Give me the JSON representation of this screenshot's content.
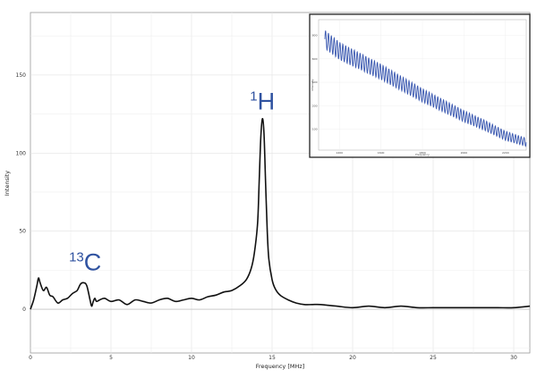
{
  "chart_data": [
    {
      "type": "line",
      "title": "",
      "xlabel": "Frequency [MHz]",
      "ylabel": "Intensity",
      "xlim": [
        0,
        31
      ],
      "ylim": [
        -28,
        190
      ],
      "x_ticks": [
        "0",
        "5",
        "10",
        "15",
        "20",
        "25",
        "30"
      ],
      "x_tick_values": [
        0,
        5,
        10,
        15,
        20,
        25,
        30
      ],
      "y_ticks": [
        "0",
        "50",
        "100",
        "150"
      ],
      "y_tick_values": [
        0,
        50,
        100,
        150
      ],
      "grid": true,
      "line_color": "#111111",
      "annotations": [
        {
          "sup": "13",
          "base": "C",
          "x": 3.4,
          "y": 25
        },
        {
          "sup": "1",
          "base": "H",
          "x": 14.4,
          "y": 128
        }
      ],
      "annotation_color": "#2f52a0",
      "series": [
        {
          "x": [
            0.0,
            0.2,
            0.4,
            0.5,
            0.6,
            0.8,
            1.0,
            1.2,
            1.4,
            1.7,
            2.0,
            2.3,
            2.6,
            2.9,
            3.1,
            3.3,
            3.5,
            3.7,
            3.8,
            3.9,
            4.0,
            4.1,
            4.3,
            4.6,
            5.0,
            5.5,
            6.0,
            6.5,
            7.0,
            7.5,
            8.0,
            8.5,
            9.0,
            9.5,
            10.0,
            10.5,
            11.0,
            11.5,
            12.0,
            12.5,
            13.0,
            13.4,
            13.7,
            13.9,
            14.1,
            14.2,
            14.3,
            14.4,
            14.5,
            14.6,
            14.7,
            14.8,
            15.0,
            15.2,
            15.5,
            16.0,
            16.5,
            17.0,
            17.5,
            18.0,
            19.0,
            20.0,
            21.0,
            22.0,
            23.0,
            24.0,
            25.0,
            26.0,
            27.0,
            28.0,
            29.0,
            30.0,
            31.0
          ],
          "y": [
            0,
            6,
            15,
            20,
            17,
            12,
            14,
            9,
            8,
            4,
            6,
            7,
            10,
            12,
            16,
            17,
            15,
            6,
            2,
            5,
            7,
            5,
            6,
            7,
            5,
            6,
            3,
            6,
            5,
            4,
            6,
            7,
            5,
            6,
            7,
            6,
            8,
            9,
            11,
            12,
            15,
            19,
            26,
            36,
            55,
            82,
            110,
            122,
            112,
            80,
            50,
            32,
            19,
            13,
            9,
            6,
            4,
            3,
            3,
            3,
            2,
            1,
            2,
            1,
            2,
            1,
            1,
            1,
            1,
            1,
            1,
            1,
            2
          ]
        }
      ]
    },
    {
      "type": "line",
      "title": "",
      "xlabel": "Frequency",
      "ylabel": "Intensity",
      "inset": true,
      "xlim": [
        0,
        100
      ],
      "ylim": [
        0,
        100
      ],
      "grid": true,
      "line_color": "#3a58b0",
      "x_ticks": [
        "1400",
        "1600",
        "1800",
        "2000",
        "2200"
      ],
      "x_tick_values": [
        10,
        30,
        50,
        70,
        90
      ],
      "y_ticks": [
        "800",
        "600",
        "400",
        "200",
        "100"
      ],
      "y_tick_values": [
        88,
        70,
        52,
        34,
        16
      ],
      "series": [
        {
          "trend_x": [
            3,
            10,
            20,
            30,
            40,
            50,
            60,
            70,
            80,
            90,
            100
          ],
          "trend_y": [
            85,
            76,
            68,
            60,
            51,
            42,
            34,
            26,
            19,
            11,
            6
          ],
          "oscillation_amplitude": 7,
          "oscillation_cycles": 70
        }
      ]
    }
  ]
}
